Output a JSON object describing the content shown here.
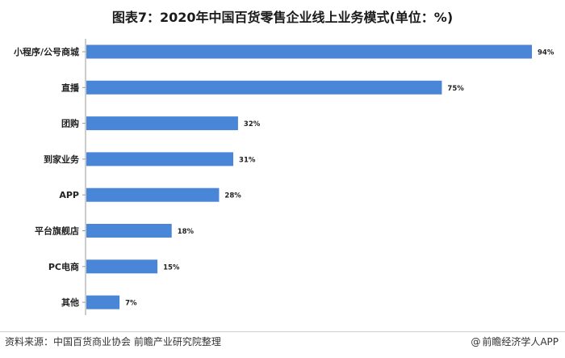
{
  "chart_data": {
    "type": "bar",
    "orientation": "horizontal",
    "title": "图表7：2020年中国百货零售企业线上业务模式(单位：%)",
    "categories": [
      "小程序/公号商城",
      "直播",
      "团购",
      "到家业务",
      "APP",
      "平台旗舰店",
      "PC电商",
      "其他"
    ],
    "values": [
      94,
      75,
      32,
      31,
      28,
      18,
      15,
      7
    ],
    "value_suffix": "%",
    "xlim": [
      0,
      100
    ],
    "bar_color": "#4a86d8",
    "grid": false,
    "legend": "none"
  },
  "footer": {
    "source": "资料来源：中国百货商业协会 前瞻产业研究院整理",
    "brand_symbol": "@",
    "brand": "前瞻经济学人APP"
  }
}
